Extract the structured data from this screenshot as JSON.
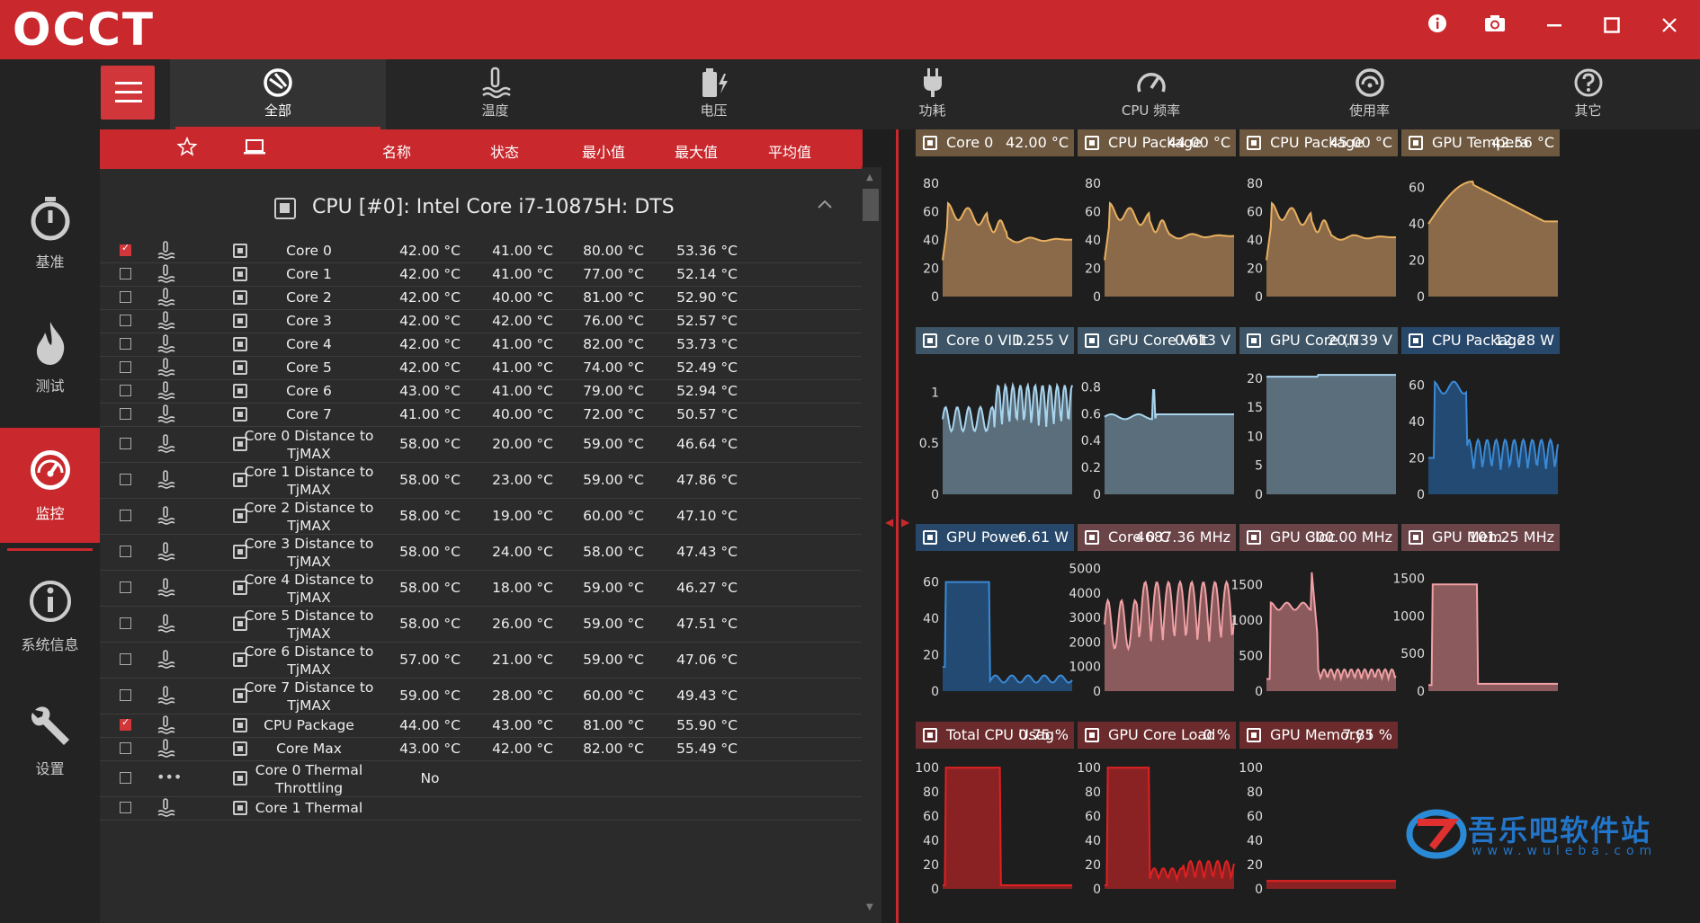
{
  "app": {
    "logo": "OCCT"
  },
  "window_buttons": [
    "info-icon",
    "camera-icon",
    "minimize-icon",
    "maximize-icon",
    "close-icon"
  ],
  "sidebar": {
    "items": [
      {
        "label": "基准",
        "icon": "stopwatch-icon"
      },
      {
        "label": "测试",
        "icon": "flame-icon"
      },
      {
        "label": "监控",
        "icon": "gauge-icon",
        "active": true
      },
      {
        "label": "系统信息",
        "icon": "info-circle-icon"
      },
      {
        "label": "设置",
        "icon": "wrench-icon"
      }
    ]
  },
  "tabs": [
    {
      "label": "全部",
      "icon": "all-icon",
      "active": true
    },
    {
      "label": "温度",
      "icon": "thermometer-icon"
    },
    {
      "label": "电压",
      "icon": "battery-icon"
    },
    {
      "label": "功耗",
      "icon": "plug-icon"
    },
    {
      "label": "CPU 频率",
      "icon": "speedometer-icon"
    },
    {
      "label": "使用率",
      "icon": "usage-icon"
    },
    {
      "label": "其它",
      "icon": "question-icon"
    }
  ],
  "table": {
    "headers": {
      "name": "名称",
      "status": "状态",
      "min": "最小值",
      "max": "最大值",
      "avg": "平均值"
    },
    "group_title": "CPU [#0]: Intel Core i7-10875H: DTS",
    "rows": [
      {
        "checked": true,
        "name": "Core 0",
        "status": "42.00 °C",
        "min": "41.00 °C",
        "max": "80.00 °C",
        "avg": "53.36 °C"
      },
      {
        "checked": false,
        "name": "Core 1",
        "status": "42.00 °C",
        "min": "41.00 °C",
        "max": "77.00 °C",
        "avg": "52.14 °C"
      },
      {
        "checked": false,
        "name": "Core 2",
        "status": "42.00 °C",
        "min": "40.00 °C",
        "max": "81.00 °C",
        "avg": "52.90 °C"
      },
      {
        "checked": false,
        "name": "Core 3",
        "status": "42.00 °C",
        "min": "42.00 °C",
        "max": "76.00 °C",
        "avg": "52.57 °C"
      },
      {
        "checked": false,
        "name": "Core 4",
        "status": "42.00 °C",
        "min": "41.00 °C",
        "max": "82.00 °C",
        "avg": "53.73 °C"
      },
      {
        "checked": false,
        "name": "Core 5",
        "status": "42.00 °C",
        "min": "41.00 °C",
        "max": "74.00 °C",
        "avg": "52.49 °C"
      },
      {
        "checked": false,
        "name": "Core 6",
        "status": "43.00 °C",
        "min": "41.00 °C",
        "max": "79.00 °C",
        "avg": "52.94 °C"
      },
      {
        "checked": false,
        "name": "Core 7",
        "status": "41.00 °C",
        "min": "40.00 °C",
        "max": "72.00 °C",
        "avg": "50.57 °C"
      },
      {
        "checked": false,
        "name": "Core 0 Distance to TjMAX",
        "status": "58.00 °C",
        "min": "20.00 °C",
        "max": "59.00 °C",
        "avg": "46.64 °C"
      },
      {
        "checked": false,
        "name": "Core 1 Distance to TjMAX",
        "status": "58.00 °C",
        "min": "23.00 °C",
        "max": "59.00 °C",
        "avg": "47.86 °C"
      },
      {
        "checked": false,
        "name": "Core 2 Distance to TjMAX",
        "status": "58.00 °C",
        "min": "19.00 °C",
        "max": "60.00 °C",
        "avg": "47.10 °C"
      },
      {
        "checked": false,
        "name": "Core 3 Distance to TjMAX",
        "status": "58.00 °C",
        "min": "24.00 °C",
        "max": "58.00 °C",
        "avg": "47.43 °C"
      },
      {
        "checked": false,
        "name": "Core 4 Distance to TjMAX",
        "status": "58.00 °C",
        "min": "18.00 °C",
        "max": "59.00 °C",
        "avg": "46.27 °C"
      },
      {
        "checked": false,
        "name": "Core 5 Distance to TjMAX",
        "status": "58.00 °C",
        "min": "26.00 °C",
        "max": "59.00 °C",
        "avg": "47.51 °C"
      },
      {
        "checked": false,
        "name": "Core 6 Distance to TjMAX",
        "status": "57.00 °C",
        "min": "21.00 °C",
        "max": "59.00 °C",
        "avg": "47.06 °C"
      },
      {
        "checked": false,
        "name": "Core 7 Distance to TjMAX",
        "status": "59.00 °C",
        "min": "28.00 °C",
        "max": "60.00 °C",
        "avg": "49.43 °C"
      },
      {
        "checked": true,
        "name": "CPU Package",
        "status": "44.00 °C",
        "min": "43.00 °C",
        "max": "81.00 °C",
        "avg": "55.90 °C"
      },
      {
        "checked": false,
        "name": "Core Max",
        "status": "43.00 °C",
        "min": "42.00 °C",
        "max": "82.00 °C",
        "avg": "55.49 °C"
      },
      {
        "checked": false,
        "name": "Core 0 Thermal Throttling",
        "status": "No",
        "min": "",
        "max": "",
        "avg": "",
        "dots": true
      },
      {
        "checked": false,
        "name": "Core 1 Thermal",
        "status": "",
        "min": "",
        "max": "",
        "avg": ""
      }
    ]
  },
  "graphs": [
    {
      "name": "Core 0",
      "value": "42.00 °C",
      "kind": "temp",
      "ymax": 90,
      "ticks": [
        0,
        20,
        40,
        60,
        80
      ]
    },
    {
      "name": "CPU Package",
      "value": "44.00 °C",
      "kind": "temp",
      "ymax": 90,
      "ticks": [
        0,
        20,
        40,
        60,
        80
      ]
    },
    {
      "name": "CPU Package",
      "value": "45.00 °C",
      "kind": "temp",
      "ymax": 90,
      "ticks": [
        0,
        20,
        40,
        60,
        80
      ]
    },
    {
      "name": "GPU Tempera",
      "value": "42.56 °C",
      "kind": "temp",
      "ymax": 70,
      "ticks": [
        0,
        20,
        40,
        60
      ]
    },
    {
      "name": "Core 0 VID",
      "value": "1.255 V",
      "kind": "volt",
      "ymax": 1.25,
      "ticks": [
        0,
        0.5,
        1
      ]
    },
    {
      "name": "GPU Core Volt",
      "value": "0.613 V",
      "kind": "volt",
      "ymax": 0.95,
      "ticks": [
        0,
        0.2,
        0.4,
        0.6,
        0.8
      ]
    },
    {
      "name": "GPU Core (N",
      "value": "20.739 V",
      "kind": "volt",
      "ymax": 22,
      "ticks": [
        0,
        5,
        10,
        15,
        20
      ]
    },
    {
      "name": "CPU Package",
      "value": "12.28 W",
      "kind": "pow",
      "ymax": 70,
      "ticks": [
        0,
        20,
        40,
        60
      ]
    },
    {
      "name": "GPU Power",
      "value": "6.61 W",
      "kind": "pow",
      "ymax": 70,
      "ticks": [
        0,
        20,
        40,
        60
      ]
    },
    {
      "name": "Core 0 C",
      "value": "4687.36 MHz",
      "kind": "freq",
      "ymax": 5200,
      "ticks": [
        0,
        1000,
        2000,
        3000,
        4000,
        5000
      ]
    },
    {
      "name": "GPU Cloc",
      "value": "300.00 MHz",
      "kind": "freq",
      "ymax": 1800,
      "ticks": [
        0,
        500,
        1000,
        1500
      ]
    },
    {
      "name": "GPU Mem",
      "value": "101.25 MHz",
      "kind": "freq",
      "ymax": 1700,
      "ticks": [
        0,
        500,
        1000,
        1500
      ]
    },
    {
      "name": "Total CPU Usag",
      "value": "0.75 %",
      "kind": "use",
      "ymax": 105,
      "ticks": [
        0,
        20,
        40,
        60,
        80,
        100
      ]
    },
    {
      "name": "GPU Core Load",
      "value": "0 %",
      "kind": "use",
      "ymax": 105,
      "ticks": [
        0,
        20,
        40,
        60,
        80,
        100
      ]
    },
    {
      "name": "GPU Memory I",
      "value": "7.85 %",
      "kind": "use",
      "ymax": 105,
      "ticks": [
        0,
        20,
        40,
        60,
        80,
        100
      ]
    }
  ],
  "colors": {
    "accent": "#c9282d",
    "temp_fill": "#8a6a48",
    "temp_line": "#e8b060",
    "volt_fill": "#5a6e7c",
    "volt_line": "#a8d4ee",
    "pow_fill": "#234a72",
    "pow_line": "#3a8ad6",
    "freq_fill": "#8a5a5c",
    "freq_line": "#f0a0a4",
    "use_fill": "#8a2224",
    "use_line": "#e02020"
  },
  "watermark": {
    "title": "吾乐吧软件站",
    "url": "www.wuleba.com"
  }
}
